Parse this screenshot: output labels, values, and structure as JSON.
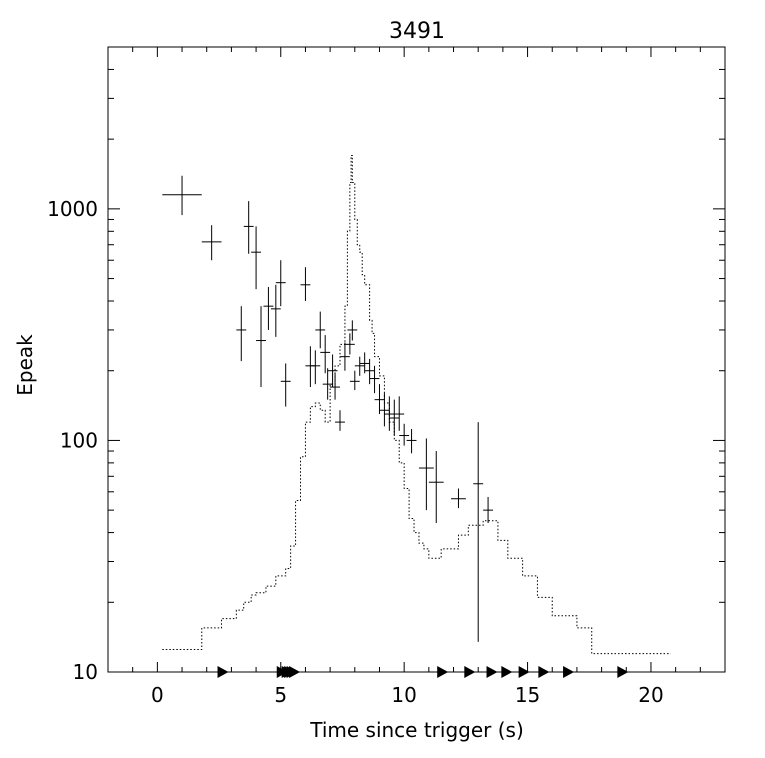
{
  "chart_data": {
    "type": "scatter",
    "title": "3491",
    "xlabel": "Time since trigger (s)",
    "ylabel": "Epeak",
    "xlim": [
      -2,
      23
    ],
    "ylim": [
      10,
      5000
    ],
    "yscale": "log",
    "grid": false,
    "x_ticks": [
      0,
      5,
      10,
      15,
      20
    ],
    "x_tick_labels": [
      "0",
      "5",
      "10",
      "15",
      "20"
    ],
    "y_ticks": [
      10,
      100,
      1000
    ],
    "y_tick_labels": [
      "10",
      "100",
      "1000"
    ],
    "series": [
      {
        "style": "error-bar-crosses",
        "points": [
          {
            "x": 1.0,
            "xerr": 0.8,
            "y": 1150,
            "ylo": 940,
            "yhi": 1390
          },
          {
            "x": 2.2,
            "xerr": 0.4,
            "y": 720,
            "ylo": 600,
            "yhi": 850
          },
          {
            "x": 3.4,
            "xerr": 0.2,
            "y": 300,
            "ylo": 220,
            "yhi": 380
          },
          {
            "x": 3.7,
            "xerr": 0.2,
            "y": 840,
            "ylo": 640,
            "yhi": 1080
          },
          {
            "x": 4.0,
            "xerr": 0.2,
            "y": 650,
            "ylo": 450,
            "yhi": 840
          },
          {
            "x": 4.2,
            "xerr": 0.2,
            "y": 270,
            "ylo": 170,
            "yhi": 380
          },
          {
            "x": 4.5,
            "xerr": 0.2,
            "y": 380,
            "ylo": 300,
            "yhi": 460
          },
          {
            "x": 4.8,
            "xerr": 0.2,
            "y": 370,
            "ylo": 280,
            "yhi": 470
          },
          {
            "x": 5.0,
            "xerr": 0.2,
            "y": 480,
            "ylo": 380,
            "yhi": 600
          },
          {
            "x": 5.2,
            "xerr": 0.2,
            "y": 180,
            "ylo": 140,
            "yhi": 215
          },
          {
            "x": 6.0,
            "xerr": 0.2,
            "y": 470,
            "ylo": 400,
            "yhi": 560
          },
          {
            "x": 6.2,
            "xerr": 0.2,
            "y": 210,
            "ylo": 170,
            "yhi": 255
          },
          {
            "x": 6.4,
            "xerr": 0.2,
            "y": 210,
            "ylo": 175,
            "yhi": 245
          },
          {
            "x": 6.6,
            "xerr": 0.2,
            "y": 300,
            "ylo": 250,
            "yhi": 360
          },
          {
            "x": 6.8,
            "xerr": 0.2,
            "y": 240,
            "ylo": 195,
            "yhi": 285
          },
          {
            "x": 6.9,
            "xerr": 0.2,
            "y": 175,
            "ylo": 150,
            "yhi": 205
          },
          {
            "x": 7.1,
            "xerr": 0.2,
            "y": 200,
            "ylo": 170,
            "yhi": 235
          },
          {
            "x": 7.2,
            "xerr": 0.2,
            "y": 170,
            "ylo": 150,
            "yhi": 195
          },
          {
            "x": 7.4,
            "xerr": 0.2,
            "y": 120,
            "ylo": 110,
            "yhi": 135
          },
          {
            "x": 7.6,
            "xerr": 0.2,
            "y": 230,
            "ylo": 200,
            "yhi": 265
          },
          {
            "x": 7.8,
            "xerr": 0.2,
            "y": 260,
            "ylo": 235,
            "yhi": 290
          },
          {
            "x": 7.9,
            "xerr": 0.2,
            "y": 300,
            "ylo": 270,
            "yhi": 330
          },
          {
            "x": 8.0,
            "xerr": 0.2,
            "y": 180,
            "ylo": 165,
            "yhi": 200
          },
          {
            "x": 8.2,
            "xerr": 0.2,
            "y": 210,
            "ylo": 190,
            "yhi": 230
          },
          {
            "x": 8.4,
            "xerr": 0.2,
            "y": 215,
            "ylo": 195,
            "yhi": 240
          },
          {
            "x": 8.6,
            "xerr": 0.2,
            "y": 200,
            "ylo": 175,
            "yhi": 225
          },
          {
            "x": 8.8,
            "xerr": 0.2,
            "y": 185,
            "ylo": 160,
            "yhi": 210
          },
          {
            "x": 9.0,
            "xerr": 0.2,
            "y": 150,
            "ylo": 130,
            "yhi": 175
          },
          {
            "x": 9.2,
            "xerr": 0.2,
            "y": 135,
            "ylo": 115,
            "yhi": 160
          },
          {
            "x": 9.4,
            "xerr": 0.2,
            "y": 130,
            "ylo": 110,
            "yhi": 155
          },
          {
            "x": 9.6,
            "xerr": 0.2,
            "y": 125,
            "ylo": 105,
            "yhi": 150
          },
          {
            "x": 9.8,
            "xerr": 0.2,
            "y": 130,
            "ylo": 110,
            "yhi": 155
          },
          {
            "x": 10.0,
            "xerr": 0.2,
            "y": 105,
            "ylo": 95,
            "yhi": 118
          },
          {
            "x": 10.3,
            "xerr": 0.2,
            "y": 100,
            "ylo": 88,
            "yhi": 112
          },
          {
            "x": 10.9,
            "xerr": 0.3,
            "y": 76,
            "ylo": 50,
            "yhi": 102
          },
          {
            "x": 11.3,
            "xerr": 0.3,
            "y": 66,
            "ylo": 44,
            "yhi": 90
          },
          {
            "x": 12.2,
            "xerr": 0.3,
            "y": 56,
            "ylo": 51,
            "yhi": 62
          },
          {
            "x": 13.0,
            "xerr": 0.2,
            "y": 65,
            "ylo": 13.5,
            "yhi": 120
          },
          {
            "x": 13.4,
            "xerr": 0.2,
            "y": 50,
            "ylo": 44,
            "yhi": 57
          }
        ]
      },
      {
        "style": "dotted-step",
        "points": [
          {
            "x": 0.2,
            "y": 12.5
          },
          {
            "x": 1.8,
            "y": 15.5
          },
          {
            "x": 2.6,
            "y": 17
          },
          {
            "x": 3.2,
            "y": 18.5
          },
          {
            "x": 3.5,
            "y": 20
          },
          {
            "x": 3.8,
            "y": 21.5
          },
          {
            "x": 4.0,
            "y": 22
          },
          {
            "x": 4.4,
            "y": 23.5
          },
          {
            "x": 4.8,
            "y": 26
          },
          {
            "x": 5.2,
            "y": 28
          },
          {
            "x": 5.4,
            "y": 35
          },
          {
            "x": 5.6,
            "y": 55
          },
          {
            "x": 5.8,
            "y": 85
          },
          {
            "x": 6.0,
            "y": 120
          },
          {
            "x": 6.2,
            "y": 140
          },
          {
            "x": 6.4,
            "y": 145
          },
          {
            "x": 6.6,
            "y": 135
          },
          {
            "x": 6.8,
            "y": 120
          },
          {
            "x": 7.0,
            "y": 175
          },
          {
            "x": 7.2,
            "y": 210
          },
          {
            "x": 7.4,
            "y": 260
          },
          {
            "x": 7.6,
            "y": 380
          },
          {
            "x": 7.7,
            "y": 800
          },
          {
            "x": 7.8,
            "y": 1300
          },
          {
            "x": 7.85,
            "y": 1700
          },
          {
            "x": 7.9,
            "y": 1300
          },
          {
            "x": 8.0,
            "y": 900
          },
          {
            "x": 8.1,
            "y": 700
          },
          {
            "x": 8.2,
            "y": 650
          },
          {
            "x": 8.3,
            "y": 520
          },
          {
            "x": 8.4,
            "y": 470
          },
          {
            "x": 8.6,
            "y": 330
          },
          {
            "x": 8.7,
            "y": 290
          },
          {
            "x": 8.8,
            "y": 230
          },
          {
            "x": 9.0,
            "y": 190
          },
          {
            "x": 9.2,
            "y": 145
          },
          {
            "x": 9.4,
            "y": 120
          },
          {
            "x": 9.6,
            "y": 100
          },
          {
            "x": 9.8,
            "y": 80
          },
          {
            "x": 10.0,
            "y": 62
          },
          {
            "x": 10.2,
            "y": 46
          },
          {
            "x": 10.4,
            "y": 40
          },
          {
            "x": 10.6,
            "y": 36
          },
          {
            "x": 10.8,
            "y": 34
          },
          {
            "x": 11.0,
            "y": 31
          },
          {
            "x": 11.5,
            "y": 34
          },
          {
            "x": 12.2,
            "y": 39
          },
          {
            "x": 12.6,
            "y": 43
          },
          {
            "x": 13.2,
            "y": 45
          },
          {
            "x": 13.8,
            "y": 37
          },
          {
            "x": 14.2,
            "y": 31
          },
          {
            "x": 14.8,
            "y": 26
          },
          {
            "x": 15.4,
            "y": 21
          },
          {
            "x": 16.0,
            "y": 17.5
          },
          {
            "x": 17.0,
            "y": 15.5
          },
          {
            "x": 17.6,
            "y": 12
          },
          {
            "x": 20.8,
            "y": 12
          }
        ]
      },
      {
        "style": "triangle-markers",
        "x": [
          2.6,
          5.0,
          5.2,
          5.3,
          5.4,
          5.5,
          11.5,
          12.6,
          13.5,
          14.1,
          14.8,
          15.6,
          16.6,
          18.8
        ]
      }
    ]
  }
}
